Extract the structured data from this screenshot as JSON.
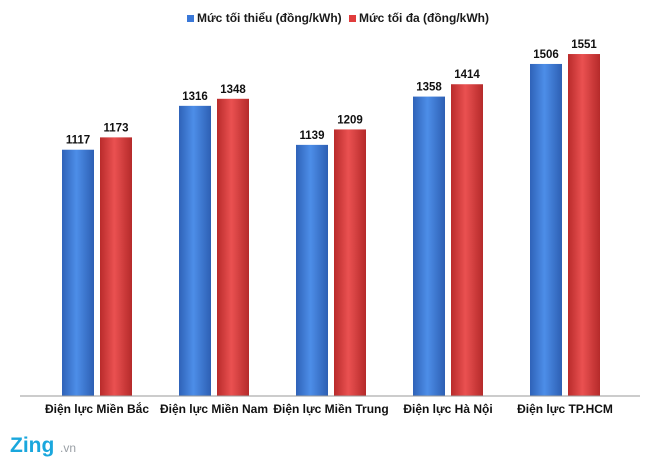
{
  "colors": {
    "series_min": "#3a78d8",
    "series_max": "#e03c3c",
    "axis": "#9a9a9a",
    "logo": "#1aa7dd"
  },
  "branding": {
    "logo_text": "Zing",
    "logo_suffix": ".vn"
  },
  "chart_data": {
    "type": "bar",
    "categories": [
      "Điện lực Miền Bắc",
      "Điện lực Miền Nam",
      "Điện lực Miền Trung",
      "Điện lực Hà Nội",
      "Điện lực TP.HCM"
    ],
    "series": [
      {
        "name": "Mức tối thiểu (đồng/kWh)",
        "values": [
          1117,
          1316,
          1139,
          1358,
          1506
        ]
      },
      {
        "name": "Mức tối đa (đồng/kWh)",
        "values": [
          1173,
          1348,
          1209,
          1414,
          1551
        ]
      }
    ],
    "title": "",
    "xlabel": "",
    "ylabel": "",
    "ylim": [
      0,
      1660
    ],
    "legend_position": "top-center",
    "grid": false,
    "data_labels": true
  }
}
